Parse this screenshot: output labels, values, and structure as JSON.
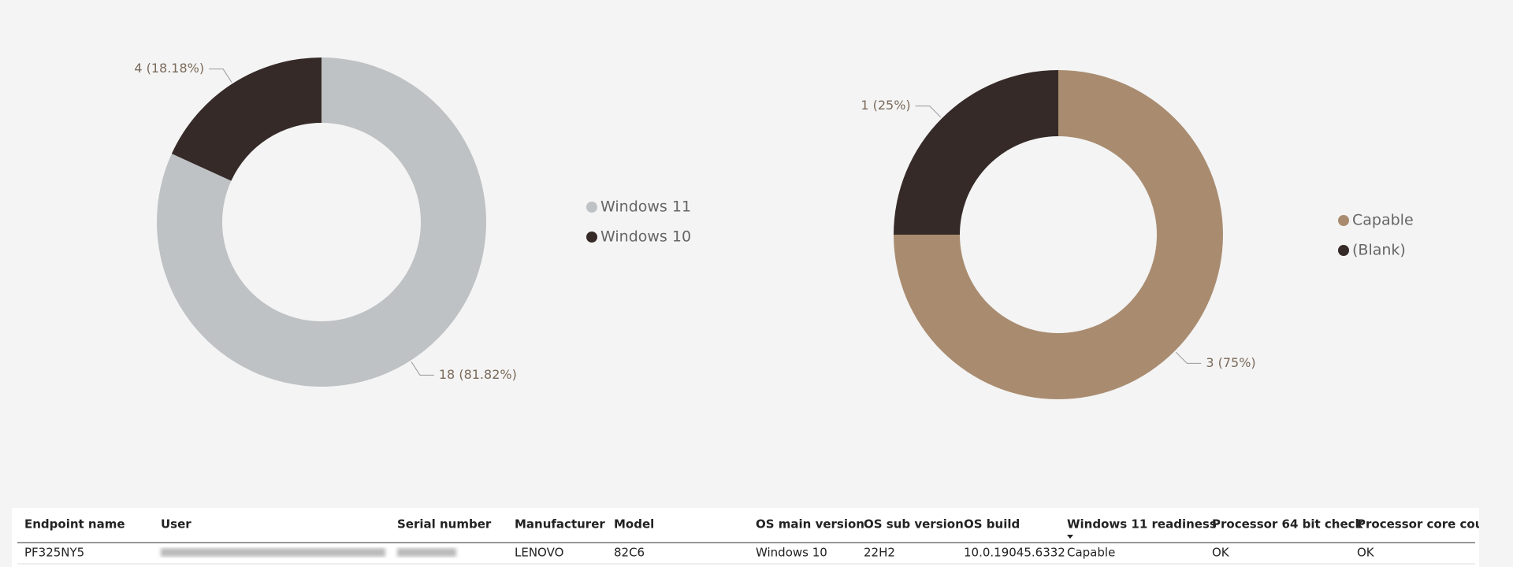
{
  "chart_data": [
    {
      "type": "donut",
      "categories": [
        "Windows 11",
        "Windows 10"
      ],
      "series": [
        {
          "values": [
            18,
            4
          ],
          "value_labels": [
            "18 (81.82%)",
            "4 (18.18%)"
          ]
        }
      ],
      "colors": [
        "#bfc2c4",
        "#352a28"
      ]
    },
    {
      "type": "donut",
      "categories": [
        "Capable",
        "(Blank)"
      ],
      "series": [
        {
          "values": [
            3,
            1
          ],
          "value_labels": [
            "3 (75%)",
            "1 (25%)"
          ]
        }
      ],
      "colors": [
        "#a98c70",
        "#352a28"
      ]
    }
  ],
  "table": {
    "columns": [
      "Endpoint name",
      "User",
      "Serial number",
      "Manufacturer",
      "Model",
      "OS main version",
      "OS sub version",
      "OS build",
      "Windows 11 readiness",
      "Processor 64 bit check",
      "Processor core coun"
    ],
    "rows": [
      [
        "PF325NY5",
        null,
        null,
        "LENOVO",
        "82C6",
        "Windows 10",
        "22H2",
        "10.0.19045.6332",
        "Capable",
        "OK",
        "OK"
      ]
    ]
  }
}
